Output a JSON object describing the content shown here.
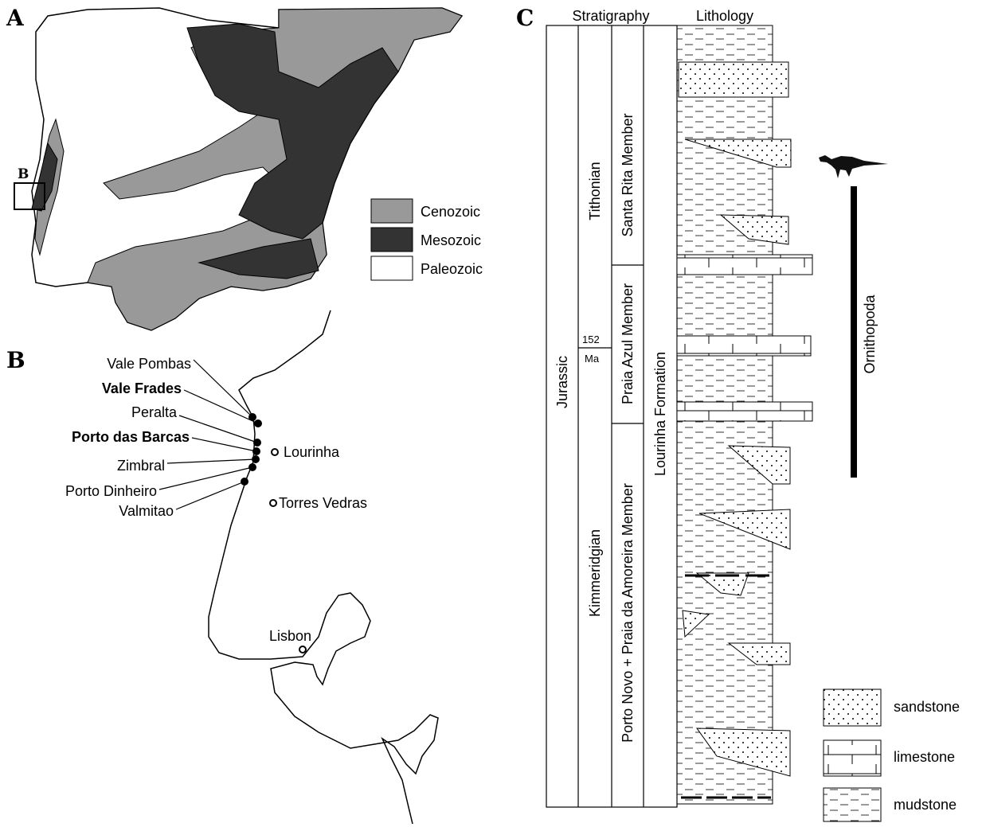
{
  "panels": {
    "a": "A",
    "b": "B",
    "c": "C"
  },
  "map_a": {
    "inset_label": "B",
    "legend": [
      "Cenozoic",
      "Mesozoic",
      "Paleozoic"
    ]
  },
  "map_b": {
    "localities": [
      "Vale Pombas",
      "Vale Frades",
      "Peralta",
      "Porto das Barcas",
      "Zimbral",
      "Porto Dinheiro",
      "Valmitao"
    ],
    "towns": [
      "Lourinha",
      "Torres Vedras",
      "Lisbon"
    ]
  },
  "column": {
    "headers": [
      "Stratigraphy",
      "Lithology"
    ],
    "system": "Jurassic",
    "stages": [
      "Tithonian",
      "Kimmeridgian"
    ],
    "age": "152",
    "age_unit": "Ma",
    "members": [
      "Santa Rita Member",
      "Praia Azul Member",
      "Porto Novo + Praia da Amoreira Member"
    ],
    "formation": "Lourinha Formation",
    "range_label": "Ornithopoda",
    "legend": [
      "sandstone",
      "limestone",
      "mudstone"
    ]
  }
}
